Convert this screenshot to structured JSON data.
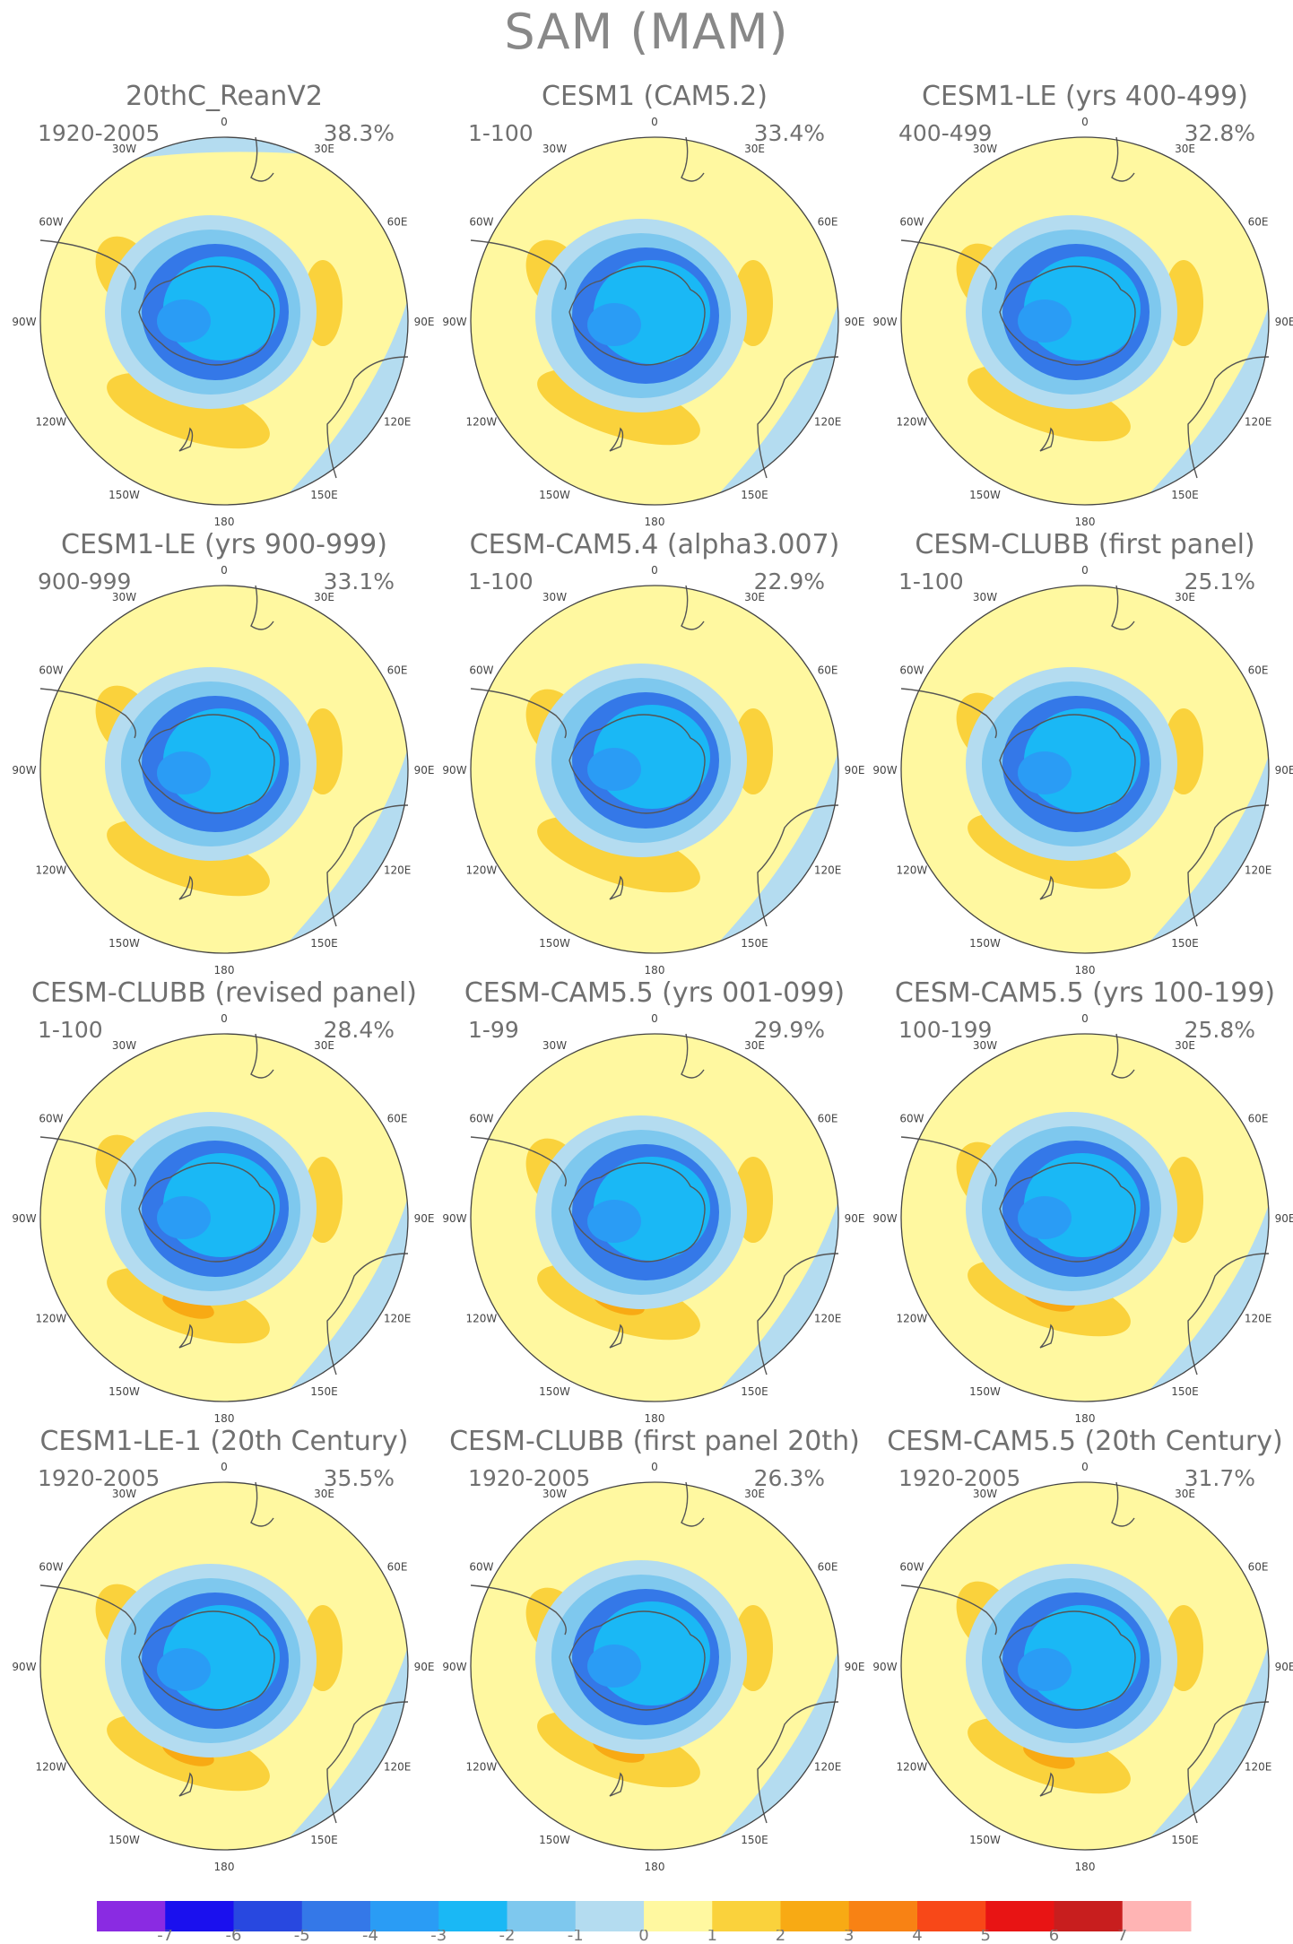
{
  "title": "SAM (MAM)",
  "longitude_labels": [
    "0",
    "30E",
    "60E",
    "90E",
    "120E",
    "150E",
    "180",
    "150W",
    "120W",
    "90W",
    "60W",
    "30W"
  ],
  "panels": [
    {
      "title": "20thC_ReanV2",
      "years": "1920-2005",
      "percent": "38.3%"
    },
    {
      "title": "CESM1 (CAM5.2)",
      "years": "1-100",
      "percent": "33.4%"
    },
    {
      "title": "CESM1-LE (yrs 400-499)",
      "years": "400-499",
      "percent": "32.8%"
    },
    {
      "title": "CESM1-LE (yrs 900-999)",
      "years": "900-999",
      "percent": "33.1%"
    },
    {
      "title": "CESM-CAM5.4 (alpha3.007)",
      "years": "1-100",
      "percent": "22.9%"
    },
    {
      "title": "CESM-CLUBB (first panel)",
      "years": "1-100",
      "percent": "25.1%"
    },
    {
      "title": "CESM-CLUBB (revised panel)",
      "years": "1-100",
      "percent": "28.4%"
    },
    {
      "title": "CESM-CAM5.5 (yrs 001-099)",
      "years": "1-99",
      "percent": "29.9%"
    },
    {
      "title": "CESM-CAM5.5 (yrs 100-199)",
      "years": "100-199",
      "percent": "25.8%"
    },
    {
      "title": "CESM1-LE-1 (20th Century)",
      "years": "1920-2005",
      "percent": "35.5%"
    },
    {
      "title": "CESM-CLUBB (first panel 20th)",
      "years": "1920-2005",
      "percent": "26.3%"
    },
    {
      "title": "CESM-CAM5.5 (20th Century)",
      "years": "1920-2005",
      "percent": "31.7%"
    }
  ],
  "colorbar": {
    "tick_labels": [
      "-7",
      "-6",
      "-5",
      "-4",
      "-3",
      "-2",
      "-1",
      "0",
      "1",
      "2",
      "3",
      "4",
      "5",
      "6",
      "7"
    ],
    "colors": [
      "#8a2be2",
      "#1a10ee",
      "#2848e0",
      "#3478e8",
      "#2a9cf5",
      "#1ab8f5",
      "#7ec8ee",
      "#b4dcf0",
      "#fff8a0",
      "#fad23c",
      "#f8aa14",
      "#f88214",
      "#f84818",
      "#e81414",
      "#c81e1e",
      "#ffb4b4"
    ]
  },
  "colors": {
    "background_field": "#fff8a0",
    "coastline": "#555555"
  }
}
